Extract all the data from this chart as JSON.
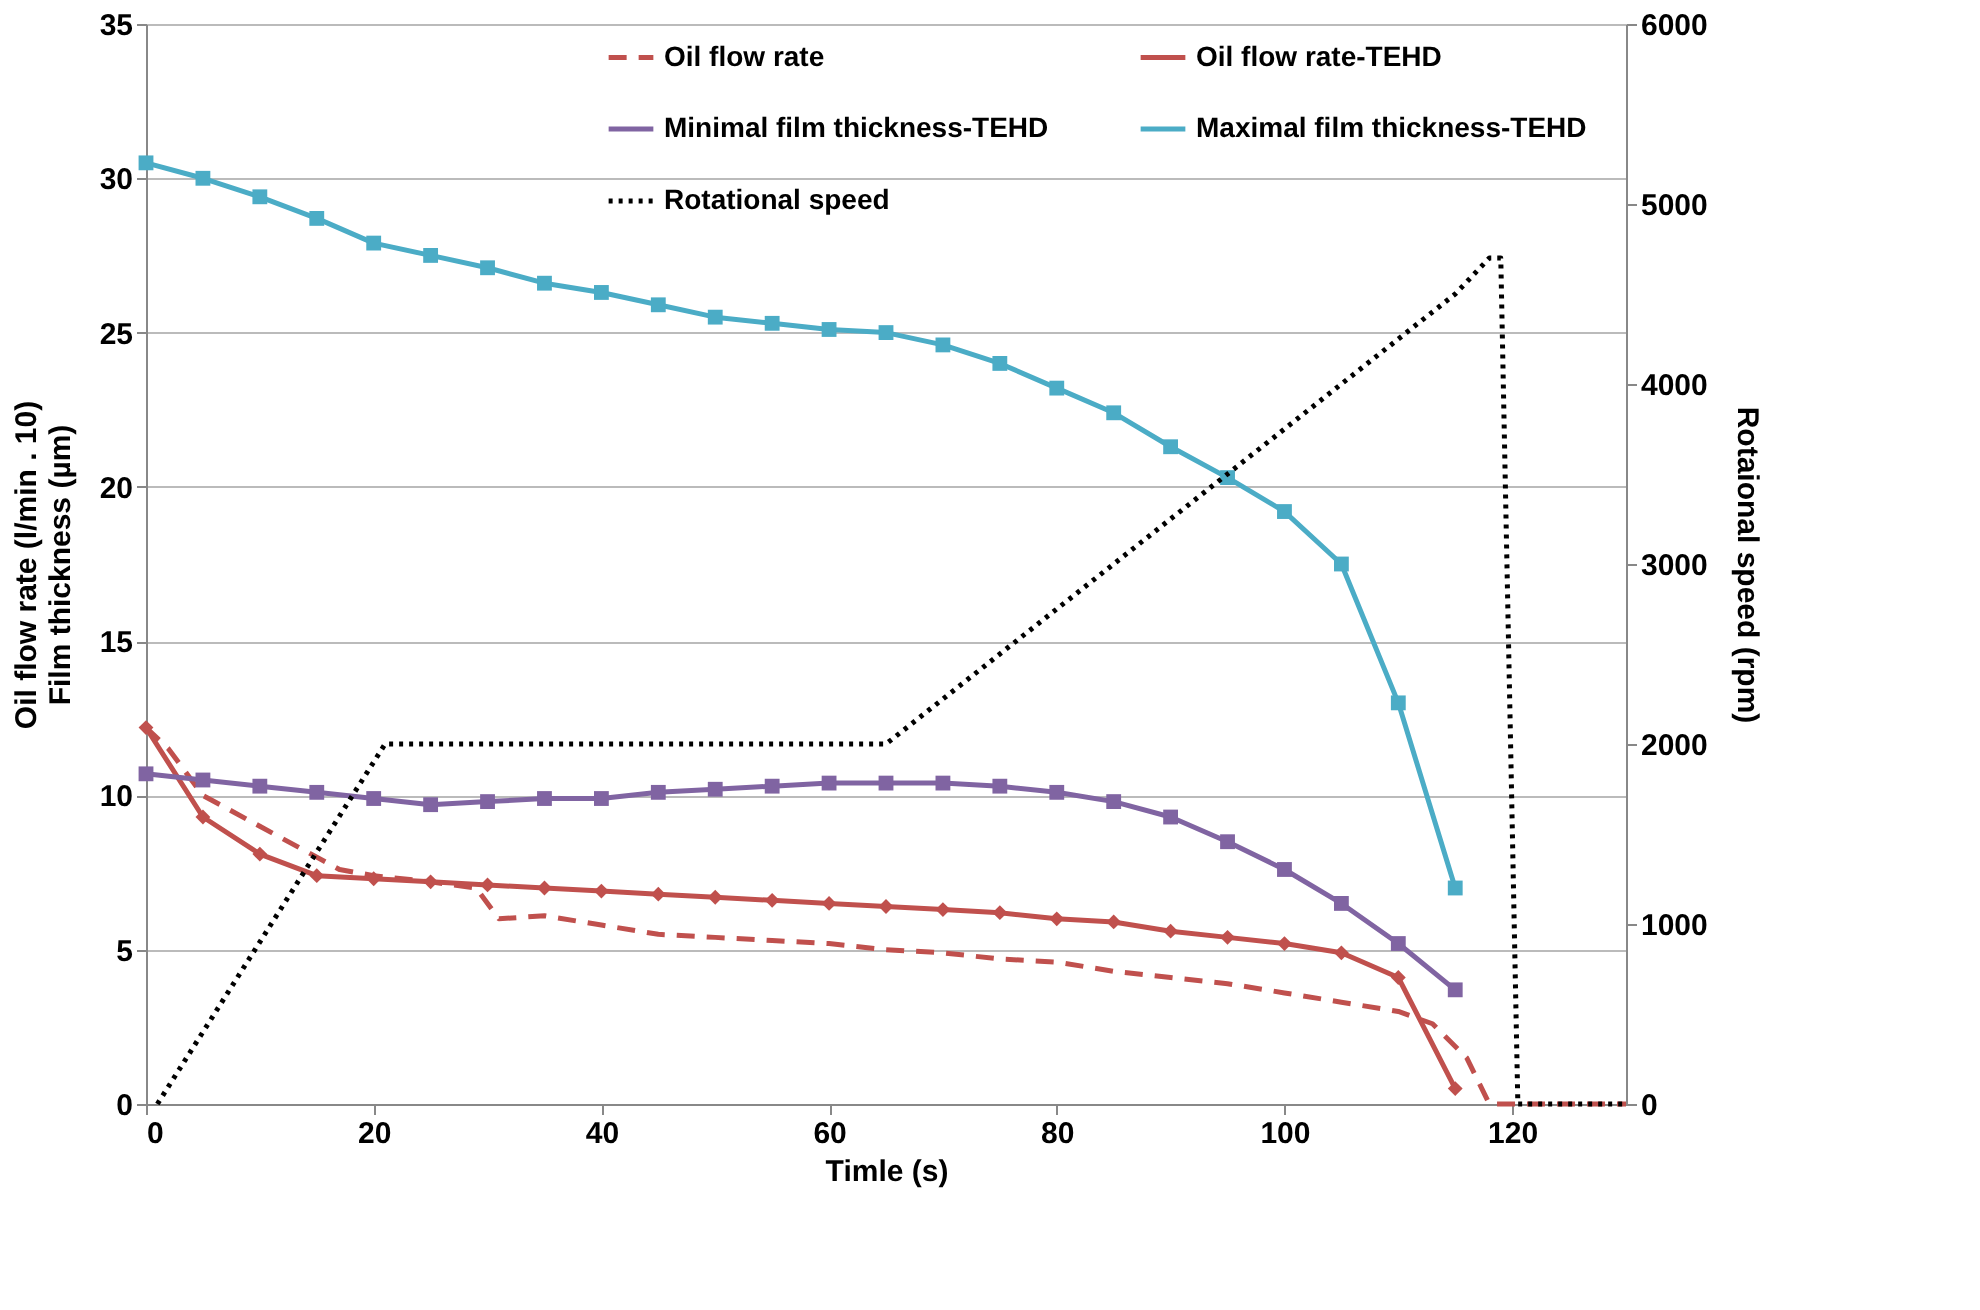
{
  "chart_data": {
    "type": "line",
    "xlabel": "Timle (s)",
    "ylabel": "Oil flow rate (l/min . 10)\nFilm thickness (µm)",
    "y2label": "Rotaional speed (rpm)",
    "xlim": [
      0,
      130
    ],
    "xticks": [
      0,
      20,
      40,
      60,
      80,
      100,
      120
    ],
    "ylim": [
      0,
      35
    ],
    "yticks": [
      0,
      5,
      10,
      15,
      20,
      25,
      30,
      35
    ],
    "y2lim": [
      0,
      6000
    ],
    "y2ticks": [
      0,
      1000,
      2000,
      3000,
      4000,
      5000,
      6000
    ],
    "grid": "y",
    "legend": "top right",
    "series": [
      {
        "name": "Oil flow rate",
        "color": "#c0504d",
        "line_style": "dashed",
        "marker": "none",
        "x": [
          0,
          2,
          5,
          10,
          15,
          17,
          20,
          25,
          29,
          31,
          35,
          40,
          45,
          50,
          55,
          60,
          65,
          70,
          75,
          80,
          85,
          90,
          95,
          100,
          105,
          110,
          113,
          116,
          118,
          125,
          130
        ],
        "values": [
          12.2,
          11.5,
          10.0,
          9.0,
          8.0,
          7.6,
          7.4,
          7.2,
          7.0,
          6.0,
          6.1,
          5.8,
          5.5,
          5.4,
          5.3,
          5.2,
          5.0,
          4.9,
          4.7,
          4.6,
          4.3,
          4.1,
          3.9,
          3.6,
          3.3,
          3.0,
          2.6,
          1.5,
          0,
          0,
          0
        ]
      },
      {
        "name": "Oil flow rate-TEHD",
        "color": "#c0504d",
        "line_style": "solid",
        "marker": "diamond",
        "x": [
          0,
          5,
          10,
          15,
          20,
          25,
          30,
          35,
          40,
          45,
          50,
          55,
          60,
          65,
          70,
          75,
          80,
          85,
          90,
          95,
          100,
          105,
          110,
          115
        ],
        "values": [
          12.2,
          9.3,
          8.1,
          7.4,
          7.3,
          7.2,
          7.1,
          7.0,
          6.9,
          6.8,
          6.7,
          6.6,
          6.5,
          6.4,
          6.3,
          6.2,
          6.0,
          5.9,
          5.6,
          5.4,
          5.2,
          4.9,
          4.1,
          0.5
        ]
      },
      {
        "name": "Minimal film thickness-TEHD",
        "color": "#8064a2",
        "line_style": "solid",
        "marker": "square",
        "x": [
          0,
          5,
          10,
          15,
          20,
          25,
          30,
          35,
          40,
          45,
          50,
          55,
          60,
          65,
          70,
          75,
          80,
          85,
          90,
          95,
          100,
          105,
          110,
          115
        ],
        "values": [
          10.7,
          10.5,
          10.3,
          10.1,
          9.9,
          9.7,
          9.8,
          9.9,
          9.9,
          10.1,
          10.2,
          10.3,
          10.4,
          10.4,
          10.4,
          10.3,
          10.1,
          9.8,
          9.3,
          8.5,
          7.6,
          6.5,
          5.2,
          3.7
        ]
      },
      {
        "name": "Maximal film thickness-TEHD",
        "color": "#4bacc6",
        "line_style": "solid",
        "marker": "square",
        "x": [
          0,
          5,
          10,
          15,
          20,
          25,
          30,
          35,
          40,
          45,
          50,
          55,
          60,
          65,
          70,
          75,
          80,
          85,
          90,
          95,
          100,
          105,
          110,
          115
        ],
        "values": [
          30.5,
          30.0,
          29.4,
          28.7,
          27.9,
          27.5,
          27.1,
          26.6,
          26.3,
          25.9,
          25.5,
          25.3,
          25.1,
          25.0,
          24.6,
          24.0,
          23.2,
          22.4,
          21.3,
          20.3,
          19.2,
          17.5,
          13.0,
          7.0
        ]
      },
      {
        "name": "Rotational speed",
        "color": "#000000",
        "line_style": "dotted",
        "marker": "none",
        "axis": "y2",
        "x": [
          1,
          21,
          30,
          40,
          50,
          60,
          65,
          80,
          90,
          100,
          105,
          110,
          115,
          118,
          119,
          120.5,
          130
        ],
        "values": [
          0,
          2000,
          2000,
          2000,
          2000,
          2000,
          2000,
          2750,
          3250,
          3750,
          4000,
          4250,
          4500,
          4700,
          4700,
          0,
          0
        ]
      }
    ]
  }
}
